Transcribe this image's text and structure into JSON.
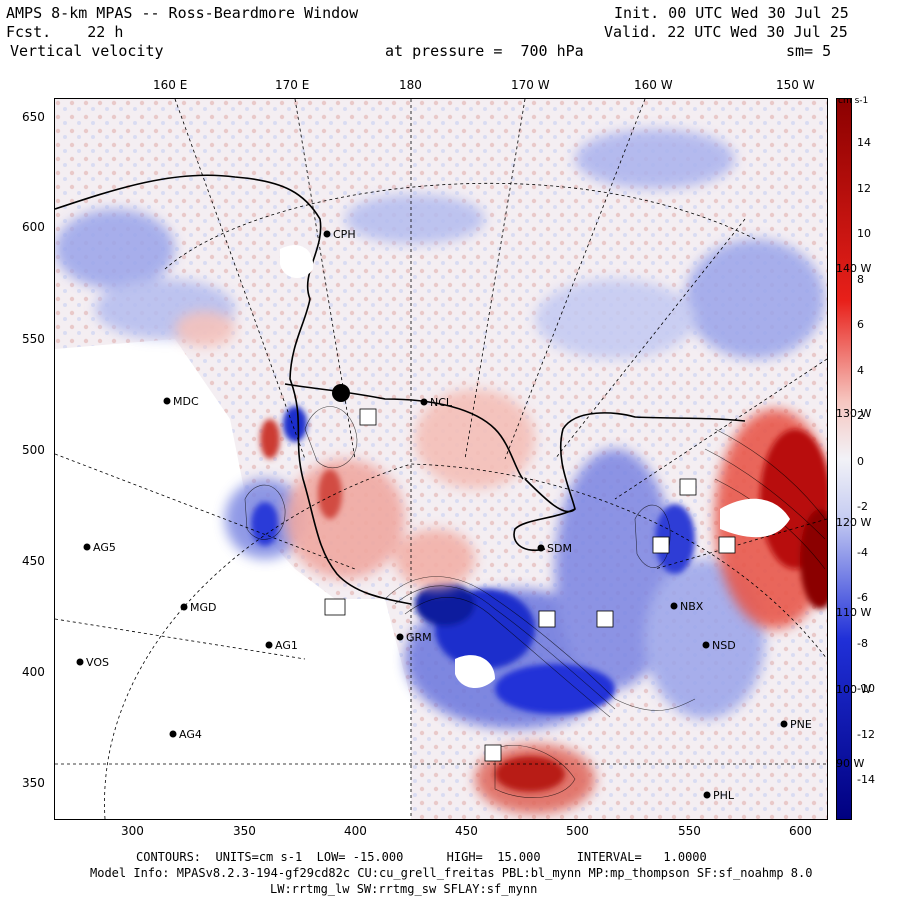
{
  "header": {
    "title": "AMPS 8-km MPAS -- Ross-Beardmore Window",
    "forecast": "Fcst.    22 h",
    "field": "Vertical velocity",
    "init": "Init. 00 UTC Wed 30 Jul 25",
    "valid": "Valid. 22 UTC Wed 30 Jul 25",
    "pressure": "at pressure =  700 hPa",
    "smoothing": "sm= 5"
  },
  "top_longitudes": [
    "160 E",
    "170 E",
    "180",
    "170 W",
    "160 W",
    "150 W"
  ],
  "x_ticks": [
    "300",
    "350",
    "400",
    "450",
    "500",
    "550",
    "600"
  ],
  "y_ticks": [
    "650",
    "600",
    "550",
    "500",
    "450",
    "400",
    "350"
  ],
  "right_longitudes": [
    "140 W",
    "130 W",
    "120 W",
    "110 W",
    "100 W",
    "90 W"
  ],
  "colorbar": {
    "units": "cm s-1",
    "labels": [
      "14",
      "12",
      "10",
      "8",
      "6",
      "4",
      "2",
      "0",
      "-2",
      "-4",
      "-6",
      "-8",
      "-10",
      "-12",
      "-14"
    ],
    "colors": {
      "strong_pos": "#8b0000",
      "pos": "#e8201a",
      "weak_pos": "#f6c6c0",
      "neutral": "#f2f2f7",
      "weak_neg": "#c7cdf2",
      "neg": "#2030d8",
      "strong_neg": "#000080"
    }
  },
  "stations": [
    {
      "name": "CPH"
    },
    {
      "name": "MDC"
    },
    {
      "name": "NCL"
    },
    {
      "name": "AG5"
    },
    {
      "name": "MGD"
    },
    {
      "name": "AG1"
    },
    {
      "name": "VOS"
    },
    {
      "name": "AG4"
    },
    {
      "name": "SDM"
    },
    {
      "name": "GRM"
    },
    {
      "name": "NBX"
    },
    {
      "name": "NSD"
    },
    {
      "name": "PNE"
    },
    {
      "name": "PHL"
    }
  ],
  "footer": {
    "contours": "CONTOURS:  UNITS=cm s-1  LOW= -15.000      HIGH=  15.000     INTERVAL=   1.0000",
    "model_info": "Model Info: MPASv8.2.3-194-gf29cd82c CU:cu_grell_freitas PBL:bl_mynn MP:mp_thompson SF:sf_noahmp 8.0",
    "model_info2": "LW:rrtmg_lw SW:rrtmg_sw SFLAY:sf_mynn"
  }
}
